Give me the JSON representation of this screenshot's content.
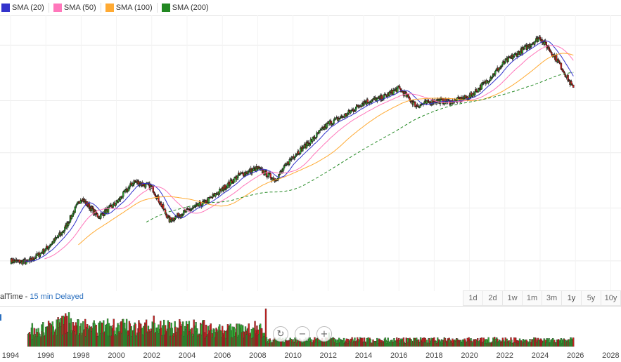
{
  "legend": [
    {
      "label": "SMA (20)",
      "color": "#3333cc"
    },
    {
      "label": "SMA (50)",
      "color": "#ff77bb"
    },
    {
      "label": "SMA (100)",
      "color": "#ffaa33"
    },
    {
      "label": "SMA (200)",
      "color": "#228822"
    }
  ],
  "status": {
    "prefix": "alTime - ",
    "delayed": "15 min Delayed"
  },
  "range_buttons": [
    "1d",
    "2d",
    "1w",
    "1m",
    "3m",
    "1y",
    "5y",
    "10y"
  ],
  "active_range": "1y",
  "zoom": [
    {
      "name": "zoom-reset-icon",
      "glyph": "↻"
    },
    {
      "name": "zoom-out-icon",
      "glyph": "−"
    },
    {
      "name": "zoom-in-icon",
      "glyph": "+"
    }
  ],
  "colors": {
    "up": "#22aa22",
    "down": "#cc2222",
    "grid": "#eeeeee"
  },
  "chart_data": {
    "type": "line",
    "x_ticks": [
      "1994",
      "1996",
      "1998",
      "2000",
      "2002",
      "2004",
      "2006",
      "2008",
      "2010",
      "2012",
      "2014",
      "2016",
      "2018",
      "2020",
      "2022",
      "2024",
      "2026",
      "2028"
    ],
    "xlim": [
      1994,
      2028
    ],
    "log_scale": true,
    "price_series": {
      "x": [
        1994,
        1995,
        1996,
        1997,
        1998,
        1999,
        2000,
        2001,
        2002,
        2003,
        2004,
        2005,
        2006,
        2007,
        2008,
        2009,
        2010,
        2011,
        2012,
        2013,
        2014,
        2015,
        2016,
        2017,
        2018,
        2019,
        2020,
        2021,
        2022,
        2023,
        2024,
        2025,
        2025.9
      ],
      "values": [
        1.0,
        0.98,
        1.2,
        1.6,
        2.7,
        2.0,
        2.5,
        3.5,
        3.2,
        1.9,
        2.2,
        2.5,
        3.1,
        3.9,
        4.3,
        3.6,
        5.2,
        6.6,
        8.7,
        10.0,
        12.2,
        13.0,
        15.2,
        11.5,
        12.5,
        12.3,
        13.3,
        17.1,
        23.0,
        27.8,
        34.0,
        23.5,
        15.0
      ]
    },
    "series": [
      {
        "name": "SMA (20)",
        "window": 20
      },
      {
        "name": "SMA (50)",
        "window": 50
      },
      {
        "name": "SMA (100)",
        "window": 100
      },
      {
        "name": "SMA (200)",
        "window": 200
      }
    ],
    "volume": {
      "start": 1995,
      "end": 2025.9
    },
    "grid": true
  }
}
